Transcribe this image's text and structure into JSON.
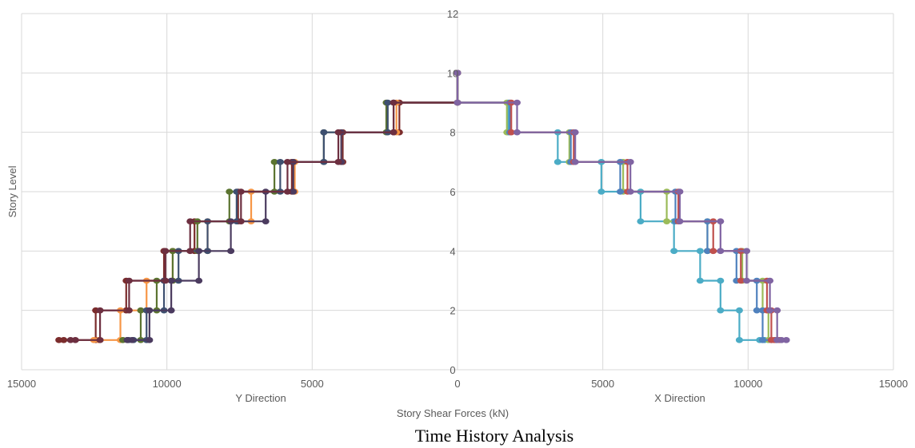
{
  "caption": "Time History Analysis",
  "chart_data": {
    "type": "line",
    "title": "",
    "xlabel": "Story Shear Forces (kN)",
    "ylabel": "Story Level",
    "x_sublabels": {
      "left": "Y Direction",
      "right": "X Direction"
    },
    "xlim": [
      -15000,
      15000
    ],
    "ylim": [
      0,
      12
    ],
    "x_ticks": [
      -15000,
      -10000,
      -5000,
      0,
      5000,
      10000,
      15000
    ],
    "x_tick_labels": [
      "15000",
      "10000",
      "5000",
      "0",
      "5000",
      "10000",
      "15000"
    ],
    "y_ticks": [
      0,
      2,
      4,
      6,
      8,
      10,
      12
    ],
    "y_tick_labels": [
      "0",
      "2",
      "4",
      "6",
      "8",
      "10",
      "12"
    ],
    "grid": true,
    "legend": "none",
    "note": "Left half plots Y-direction shear (drawn mirrored); right half plots X-direction shear. Each record drawn as a step profile: story level i spans from level i-1 to level i at that story's shear.",
    "levels": [
      1,
      2,
      3,
      4,
      5,
      6,
      7,
      8,
      9,
      10
    ],
    "series": [
      {
        "side": "Y",
        "color": "#7b2c2c",
        "values": [
          13550,
          12450,
          11400,
          10100,
          9050,
          7550,
          5700,
          3950,
          2000,
          0
        ]
      },
      {
        "side": "Y",
        "color": "#f79646",
        "values": [
          12350,
          11600,
          10700,
          9800,
          8600,
          7100,
          5600,
          4000,
          2100,
          0
        ]
      },
      {
        "side": "Y",
        "color": "#5b7430",
        "values": [
          11350,
          10900,
          10350,
          9800,
          8950,
          7850,
          6300,
          4600,
          2450,
          0
        ]
      },
      {
        "side": "Y",
        "color": "#3e5070",
        "values": [
          11150,
          10700,
          10100,
          9600,
          8600,
          7600,
          6100,
          4600,
          2400,
          0
        ]
      },
      {
        "side": "Y",
        "color": "#4b3b5f",
        "values": [
          11200,
          10600,
          9850,
          8900,
          7800,
          6600,
          5650,
          4000,
          2200,
          0
        ]
      },
      {
        "side": "Y",
        "color": "#6d2f40",
        "values": [
          13150,
          12300,
          11300,
          10050,
          9200,
          7450,
          5850,
          4100,
          2200,
          0
        ]
      },
      {
        "side": "X",
        "color": "#4bacc6",
        "values": [
          10400,
          9700,
          9050,
          8350,
          7450,
          6300,
          4950,
          3450,
          1750,
          0
        ]
      },
      {
        "side": "X",
        "color": "#9bbb59",
        "values": [
          10950,
          10700,
          10500,
          9800,
          8600,
          7200,
          5700,
          3850,
          1700,
          0
        ]
      },
      {
        "side": "X",
        "color": "#4f81bd",
        "values": [
          10800,
          10500,
          10300,
          9600,
          8600,
          7500,
          5600,
          3900,
          1800,
          0
        ]
      },
      {
        "side": "X",
        "color": "#c0504d",
        "values": [
          10900,
          10800,
          10650,
          9750,
          8800,
          7600,
          5850,
          4000,
          1850,
          0
        ]
      },
      {
        "side": "X",
        "color": "#8064a2",
        "values": [
          11150,
          11000,
          10750,
          9950,
          9050,
          7650,
          5950,
          4050,
          2050,
          0
        ]
      }
    ]
  }
}
